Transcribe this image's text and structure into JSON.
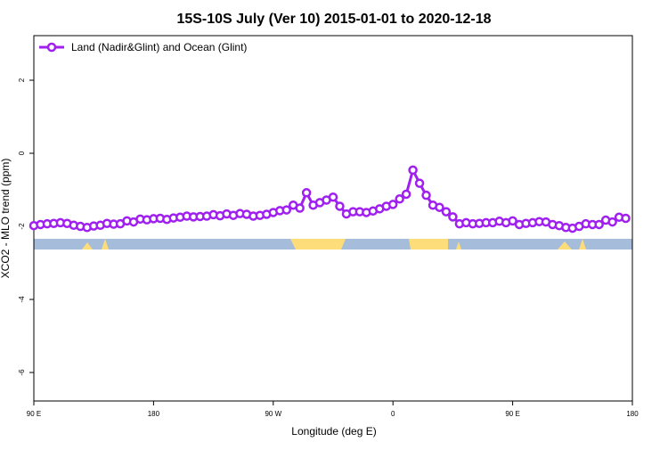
{
  "chart_data": {
    "type": "line",
    "title": "15S-10S July (Ver 10)   2015-01-01 to 2020-12-18",
    "x_label": "Longitude (deg E)",
    "y_label": "XCO2 - MLO trend (ppm)",
    "x": [
      90,
      95,
      100,
      105,
      110,
      115,
      120,
      125,
      130,
      135,
      140,
      145,
      150,
      155,
      160,
      165,
      170,
      175,
      180,
      185,
      190,
      195,
      200,
      205,
      210,
      215,
      220,
      225,
      230,
      235,
      240,
      245,
      250,
      255,
      260,
      265,
      270,
      275,
      280,
      285,
      290,
      295,
      300,
      305,
      310,
      315,
      320,
      325,
      330,
      335,
      340,
      345,
      350,
      355,
      360,
      365,
      370,
      375,
      380,
      385,
      390,
      395,
      400,
      405,
      410,
      415,
      420,
      425,
      430,
      435,
      440,
      445,
      450,
      455,
      460,
      465,
      470,
      475,
      480,
      485,
      490,
      495,
      500,
      505,
      510,
      515,
      520,
      525,
      530,
      535
    ],
    "series": [
      {
        "name": "Land (Nadir&Glint) and Ocean (Glint)",
        "color": "#a020f0",
        "values": [
          -1.98,
          -1.95,
          -1.93,
          -1.92,
          -1.9,
          -1.92,
          -1.97,
          -2.0,
          -2.03,
          -1.99,
          -1.97,
          -1.92,
          -1.94,
          -1.93,
          -1.85,
          -1.88,
          -1.8,
          -1.82,
          -1.79,
          -1.78,
          -1.81,
          -1.77,
          -1.75,
          -1.72,
          -1.74,
          -1.73,
          -1.72,
          -1.68,
          -1.71,
          -1.66,
          -1.7,
          -1.65,
          -1.67,
          -1.72,
          -1.7,
          -1.67,
          -1.62,
          -1.57,
          -1.55,
          -1.42,
          -1.5,
          -1.08,
          -1.42,
          -1.35,
          -1.28,
          -1.2,
          -1.45,
          -1.66,
          -1.6,
          -1.6,
          -1.62,
          -1.58,
          -1.52,
          -1.45,
          -1.4,
          -1.25,
          -1.12,
          -0.46,
          -0.82,
          -1.15,
          -1.42,
          -1.48,
          -1.6,
          -1.74,
          -1.93,
          -1.9,
          -1.93,
          -1.92,
          -1.9,
          -1.9,
          -1.86,
          -1.9,
          -1.85,
          -1.95,
          -1.92,
          -1.9,
          -1.87,
          -1.88,
          -1.95,
          -1.98,
          -2.03,
          -2.05,
          -2.0,
          -1.93,
          -1.95,
          -1.95,
          -1.83,
          -1.88,
          -1.75,
          -1.78
        ]
      }
    ],
    "xlim": [
      90,
      540
    ],
    "xticks": [
      {
        "value": 90,
        "label": "90 E"
      },
      180,
      {
        "value": 270,
        "label": "90 W"
      },
      {
        "value": 360,
        "label": "0"
      },
      {
        "value": 450,
        "label": "90 E"
      },
      {
        "value": 540,
        "label": "180"
      }
    ],
    "ylim": [
      -6.78,
      3.22
    ],
    "yticks": [
      -6,
      -4,
      -2,
      0,
      2
    ],
    "legend": "top-left"
  }
}
